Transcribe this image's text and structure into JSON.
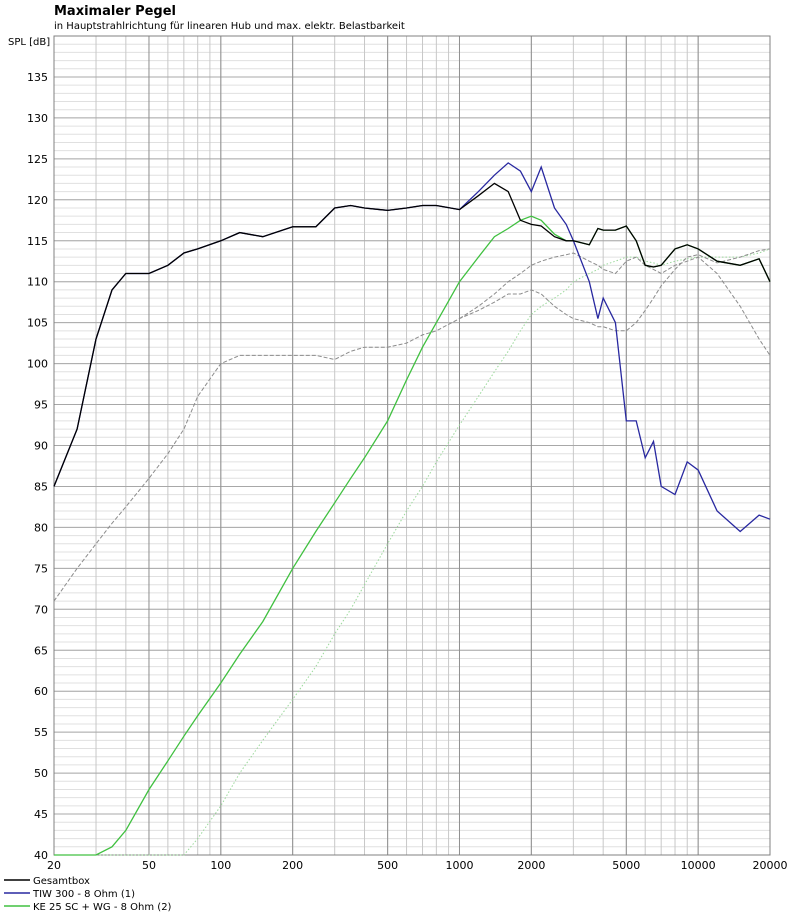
{
  "chart_data": {
    "type": "line",
    "title": "Maximaler Pegel",
    "subtitle": "in Hauptstrahlrichtung für linearen Hub und max. elektr. Belastbarkeit",
    "y_label": "SPL [dB]",
    "log_x": true,
    "grid": true,
    "xlim": [
      20,
      20000
    ],
    "ylim": [
      40,
      140
    ],
    "xticks": [
      20,
      50,
      100,
      200,
      500,
      1000,
      2000,
      5000,
      10000,
      20000
    ],
    "yticks": [
      40,
      45,
      50,
      55,
      60,
      65,
      70,
      75,
      80,
      85,
      90,
      95,
      100,
      105,
      110,
      115,
      120,
      125,
      130,
      135
    ],
    "x": [
      20,
      25,
      30,
      35,
      40,
      50,
      60,
      70,
      80,
      100,
      120,
      150,
      200,
      250,
      300,
      350,
      400,
      500,
      600,
      700,
      800,
      1000,
      1200,
      1400,
      1600,
      1800,
      2000,
      2200,
      2500,
      2800,
      3000,
      3500,
      3800,
      4000,
      4500,
      5000,
      5500,
      6000,
      6500,
      7000,
      8000,
      9000,
      10000,
      12000,
      15000,
      18000,
      20000
    ],
    "series": [
      {
        "name": "Gesamtbox",
        "color": "#000000",
        "dash": "solid",
        "values": [
          85,
          92,
          103,
          109,
          111,
          111,
          112,
          113.5,
          114,
          115,
          116,
          115.5,
          116.7,
          116.7,
          119,
          119.3,
          119,
          118.7,
          119,
          119.3,
          119.3,
          118.8,
          120.5,
          122,
          121,
          117.5,
          117,
          116.8,
          115.5,
          115,
          115,
          114.5,
          116.5,
          116.3,
          116.3,
          116.8,
          115,
          112,
          111.8,
          112,
          114,
          114.5,
          114,
          112.5,
          112,
          112.8,
          110
        ]
      },
      {
        "name": "TIW 300 - 8 Ohm (1)",
        "color": "#2828a0",
        "dash": "solid",
        "values": [
          85,
          92,
          103,
          109,
          111,
          111,
          112,
          113.5,
          114,
          115,
          116,
          115.5,
          116.7,
          116.7,
          119,
          119.3,
          119,
          118.7,
          119,
          119.3,
          119.3,
          118.8,
          121,
          123,
          124.5,
          123.5,
          121,
          124,
          119,
          117,
          115,
          110,
          105.5,
          108,
          105,
          93,
          93,
          88.5,
          90.5,
          85,
          84,
          88,
          87,
          82,
          79.5,
          81.5,
          81
        ]
      },
      {
        "name": "KE 25 SC + WG - 8 Ohm (2)",
        "color": "#40c040",
        "dash": "solid",
        "values": [
          40,
          40,
          40,
          41,
          43,
          48,
          51.5,
          54.5,
          57,
          61,
          64.5,
          68.5,
          75,
          79.5,
          83,
          86,
          88.5,
          93,
          98,
          102,
          105,
          110,
          113,
          115.5,
          116.5,
          117.5,
          118,
          117.5,
          115.8,
          115,
          115,
          114.5,
          116.5,
          116.3,
          116.3,
          116.8,
          115,
          112,
          111.8,
          112,
          114,
          114.5,
          114,
          112.5,
          112,
          112.8,
          110
        ]
      },
      {
        "color": "#8c8c8c",
        "dash": "dashed",
        "values": [
          71,
          75,
          78,
          80.5,
          82.5,
          86,
          89,
          92,
          96,
          100,
          101,
          101,
          101,
          101,
          100.5,
          101.5,
          102,
          102,
          102.5,
          103.5,
          104,
          105.5,
          106.5,
          107.5,
          108.5,
          108.5,
          109,
          108.5,
          107,
          106,
          105.5,
          105,
          104.5,
          104.5,
          104,
          104,
          105,
          106.5,
          108,
          109.5,
          111.5,
          113,
          113.3,
          112.3,
          113,
          113.8,
          114
        ]
      },
      {
        "color": "#8c8c8c",
        "dash": "dashed",
        "values": [
          null,
          null,
          null,
          null,
          null,
          null,
          null,
          null,
          null,
          null,
          null,
          null,
          null,
          null,
          null,
          null,
          null,
          null,
          null,
          null,
          null,
          105.5,
          107,
          108.5,
          110,
          111,
          112,
          112.5,
          113,
          113.3,
          113.5,
          112.5,
          112,
          111.5,
          111,
          112.5,
          113,
          112,
          111.5,
          111,
          112,
          112.5,
          113,
          111,
          107,
          103,
          101
        ]
      },
      {
        "color": "#9ad89a",
        "dash": "dotted",
        "values": [
          40,
          40,
          40,
          40,
          40,
          40,
          40,
          40,
          42,
          46,
          50,
          54,
          59,
          63,
          67,
          70,
          73,
          78,
          82,
          85,
          88,
          92.5,
          96,
          99,
          101.5,
          104,
          106,
          107,
          108,
          109,
          110,
          111,
          111.5,
          112,
          112.5,
          113,
          113,
          112.5,
          112.3,
          112,
          112.5,
          112.8,
          113,
          113,
          113,
          113.5,
          114
        ]
      }
    ]
  }
}
